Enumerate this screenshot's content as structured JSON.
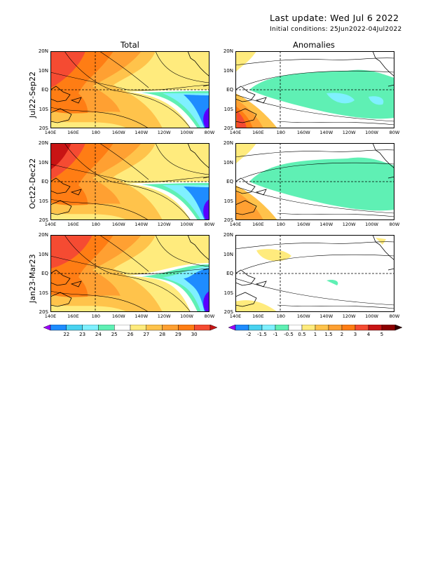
{
  "header": {
    "last_update": "Last update: Wed Jul  6 2022",
    "initial_conditions": "Initial conditions: 25Jun2022-04Jul2022"
  },
  "columns": {
    "total": "Total",
    "anomalies": "Anomalies"
  },
  "rows": [
    {
      "label": "Jul22-Sep22"
    },
    {
      "label": "Oct22-Dec22"
    },
    {
      "label": "Jan23-Mar23"
    }
  ],
  "axes": {
    "lat_ticks": [
      "20N",
      "10N",
      "EQ",
      "10S",
      "20S"
    ],
    "lon_ticks": [
      "140E",
      "160E",
      "180",
      "160W",
      "140W",
      "120W",
      "100W",
      "80W"
    ]
  },
  "colorbars": {
    "total": {
      "labels": [
        "22",
        "23",
        "24",
        "25",
        "26",
        "27",
        "28",
        "29",
        "30"
      ],
      "colors": [
        "#9b00ff",
        "#1e8cff",
        "#48d2f0",
        "#7ff0ff",
        "#5ff0b4",
        "#ffffff",
        "#ffeb7d",
        "#ffc34b",
        "#ffa032",
        "#ff7d14",
        "#f54b32",
        "#c81414"
      ]
    },
    "anomalies": {
      "labels": [
        "-2",
        "-1.5",
        "-1",
        "-0.5",
        "0.5",
        "1",
        "1.5",
        "2",
        "3",
        "4",
        "5"
      ],
      "colors": [
        "#9b00ff",
        "#1e8cff",
        "#48d2f0",
        "#7ff0ff",
        "#5ff0b4",
        "#ffffff",
        "#ffeb7d",
        "#ffc34b",
        "#ffa032",
        "#ff7d14",
        "#f54b32",
        "#c81414",
        "#8c0000",
        "#320000"
      ]
    }
  },
  "palette": {
    "warm_pool": "#f54b32",
    "orange": "#ff7d14",
    "light_orange": "#ffa032",
    "gold": "#ffc34b",
    "yellow": "#ffeb7d",
    "white": "#ffffff",
    "teal": "#5ff0b4",
    "cyan": "#7ff0ff",
    "light_blue": "#48d2f0",
    "blue": "#1e8cff",
    "purple": "#5a00ff",
    "dark_red": "#c81414"
  }
}
